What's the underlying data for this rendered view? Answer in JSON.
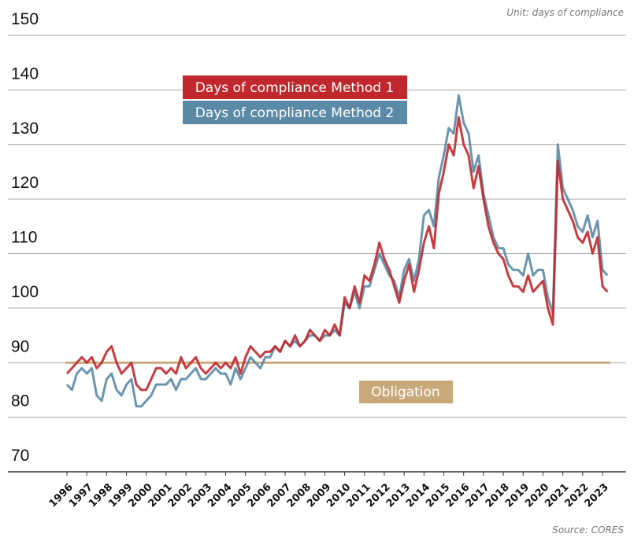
{
  "chart_data": {
    "type": "line",
    "unit_note": "Unit: days of compliance",
    "source": "Source: CORES",
    "x": [
      1996,
      1996.25,
      1996.5,
      1996.75,
      1997,
      1997.25,
      1997.5,
      1997.75,
      1998,
      1998.25,
      1998.5,
      1998.75,
      1999,
      1999.25,
      1999.5,
      1999.75,
      2000,
      2000.25,
      2000.5,
      2000.75,
      2001,
      2001.25,
      2001.5,
      2001.75,
      2002,
      2002.25,
      2002.5,
      2002.75,
      2003,
      2003.25,
      2003.5,
      2003.75,
      2004,
      2004.25,
      2004.5,
      2004.75,
      2005,
      2005.25,
      2005.5,
      2005.75,
      2006,
      2006.25,
      2006.5,
      2006.75,
      2007,
      2007.25,
      2007.5,
      2007.75,
      2008,
      2008.25,
      2008.5,
      2008.75,
      2009,
      2009.25,
      2009.5,
      2009.75,
      2010,
      2010.25,
      2010.5,
      2010.75,
      2011,
      2011.25,
      2011.5,
      2011.75,
      2012,
      2012.25,
      2012.5,
      2012.75,
      2013,
      2013.25,
      2013.5,
      2013.75,
      2014,
      2014.25,
      2014.5,
      2014.75,
      2015,
      2015.25,
      2015.5,
      2015.75,
      2016,
      2016.25,
      2016.5,
      2016.75,
      2017,
      2017.25,
      2017.5,
      2017.75,
      2018,
      2018.25,
      2018.5,
      2018.75,
      2019,
      2019.25,
      2019.5,
      2019.75,
      2020,
      2020.25,
      2020.5,
      2020.75,
      2021,
      2021.25,
      2021.5,
      2021.75,
      2022,
      2022.25,
      2022.5,
      2022.75,
      2023,
      2023.25
    ],
    "series": [
      {
        "name": "Days of compliance Method 2",
        "color": "#5b8aa6",
        "values": [
          86,
          85,
          88,
          89,
          88,
          89,
          84,
          83,
          87,
          88,
          85,
          84,
          86,
          87,
          82,
          82,
          83,
          84,
          86,
          86,
          86,
          87,
          85,
          87,
          87,
          88,
          89,
          87,
          87,
          88,
          89,
          88,
          88,
          86,
          89,
          87,
          89,
          91,
          90,
          89,
          91,
          91,
          93,
          92,
          94,
          93,
          94,
          93,
          94,
          95,
          95,
          94,
          95,
          95,
          96,
          95,
          101,
          100,
          103,
          100,
          104,
          104,
          107,
          110,
          108,
          106,
          105,
          102,
          107,
          109,
          105,
          109,
          117,
          118,
          115,
          124,
          128,
          133,
          132,
          139,
          134,
          132,
          125,
          128,
          121,
          117,
          113,
          111,
          111,
          108,
          107,
          107,
          106,
          110,
          106,
          107,
          107,
          102,
          99,
          130,
          122,
          120,
          118,
          115,
          114,
          117,
          113,
          116,
          107,
          106
        ]
      },
      {
        "name": "Days of compliance Method 1",
        "color": "#c0282d",
        "values": [
          88,
          89,
          90,
          91,
          90,
          91,
          89,
          90,
          92,
          93,
          90,
          88,
          89,
          90,
          86,
          85,
          85,
          87,
          89,
          89,
          88,
          89,
          88,
          91,
          89,
          90,
          91,
          89,
          88,
          89,
          90,
          89,
          90,
          89,
          91,
          88,
          91,
          93,
          92,
          91,
          92,
          92,
          93,
          92,
          94,
          93,
          95,
          93,
          94,
          96,
          95,
          94,
          96,
          95,
          97,
          95,
          102,
          100,
          104,
          101,
          106,
          105,
          108,
          112,
          109,
          107,
          104,
          101,
          105,
          108,
          103,
          107,
          112,
          115,
          111,
          121,
          125,
          130,
          128,
          135,
          130,
          128,
          122,
          126,
          120,
          115,
          112,
          110,
          109,
          106,
          104,
          104,
          103,
          106,
          103,
          104,
          105,
          100,
          97,
          127,
          120,
          118,
          116,
          113,
          112,
          114,
          110,
          113,
          104,
          103
        ]
      }
    ],
    "reference_lines": [
      {
        "label": "Obligation",
        "value": 90,
        "color": "#c8a97a"
      }
    ],
    "xlim": [
      1996,
      2023
    ],
    "xticks": [
      1996,
      1997,
      1998,
      1999,
      2000,
      2001,
      2002,
      2003,
      2004,
      2005,
      2006,
      2007,
      2008,
      2009,
      2010,
      2011,
      2012,
      2013,
      2014,
      2015,
      2016,
      2017,
      2018,
      2019,
      2020,
      2021,
      2022,
      2023
    ],
    "ylim": [
      70,
      150
    ],
    "yticks": [
      70,
      80,
      90,
      100,
      110,
      120,
      130,
      140,
      150
    ],
    "grid": true
  }
}
